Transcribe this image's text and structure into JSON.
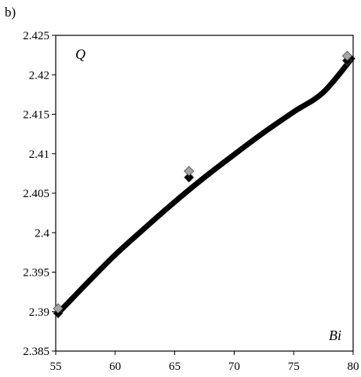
{
  "panel_label": "b)",
  "chart_data": {
    "type": "line",
    "xlabel": "Bi",
    "ylabel": "Q",
    "xlim": [
      55,
      80
    ],
    "ylim": [
      2.385,
      2.425
    ],
    "xticks": [
      "55",
      "60",
      "65",
      "70",
      "75",
      "80"
    ],
    "yticks": [
      "2.385",
      "2.39",
      "2.395",
      "2.4",
      "2.405",
      "2.41",
      "2.415",
      "2.42",
      "2.425"
    ],
    "grid": false,
    "series": [
      {
        "style": "thick-curve",
        "color": "#000000",
        "x": [
          55.2,
          57.5,
          60.0,
          62.5,
          65.0,
          67.5,
          70.0,
          72.5,
          75.0,
          77.5,
          80.0
        ],
        "y": [
          2.3898,
          2.3934,
          2.3972,
          2.4006,
          2.4039,
          2.407,
          2.4099,
          2.4127,
          2.4153,
          2.4178,
          2.4223
        ]
      },
      {
        "style": "diamond-markers",
        "color": "#000000",
        "x": [
          55.2,
          66.2,
          79.5
        ],
        "y": [
          2.3898,
          2.407,
          2.4218
        ]
      },
      {
        "style": "diamond-markers",
        "color": "#a6a6a6",
        "x": [
          55.2,
          66.2,
          79.5
        ],
        "y": [
          2.3904,
          2.4078,
          2.4224
        ]
      }
    ]
  }
}
